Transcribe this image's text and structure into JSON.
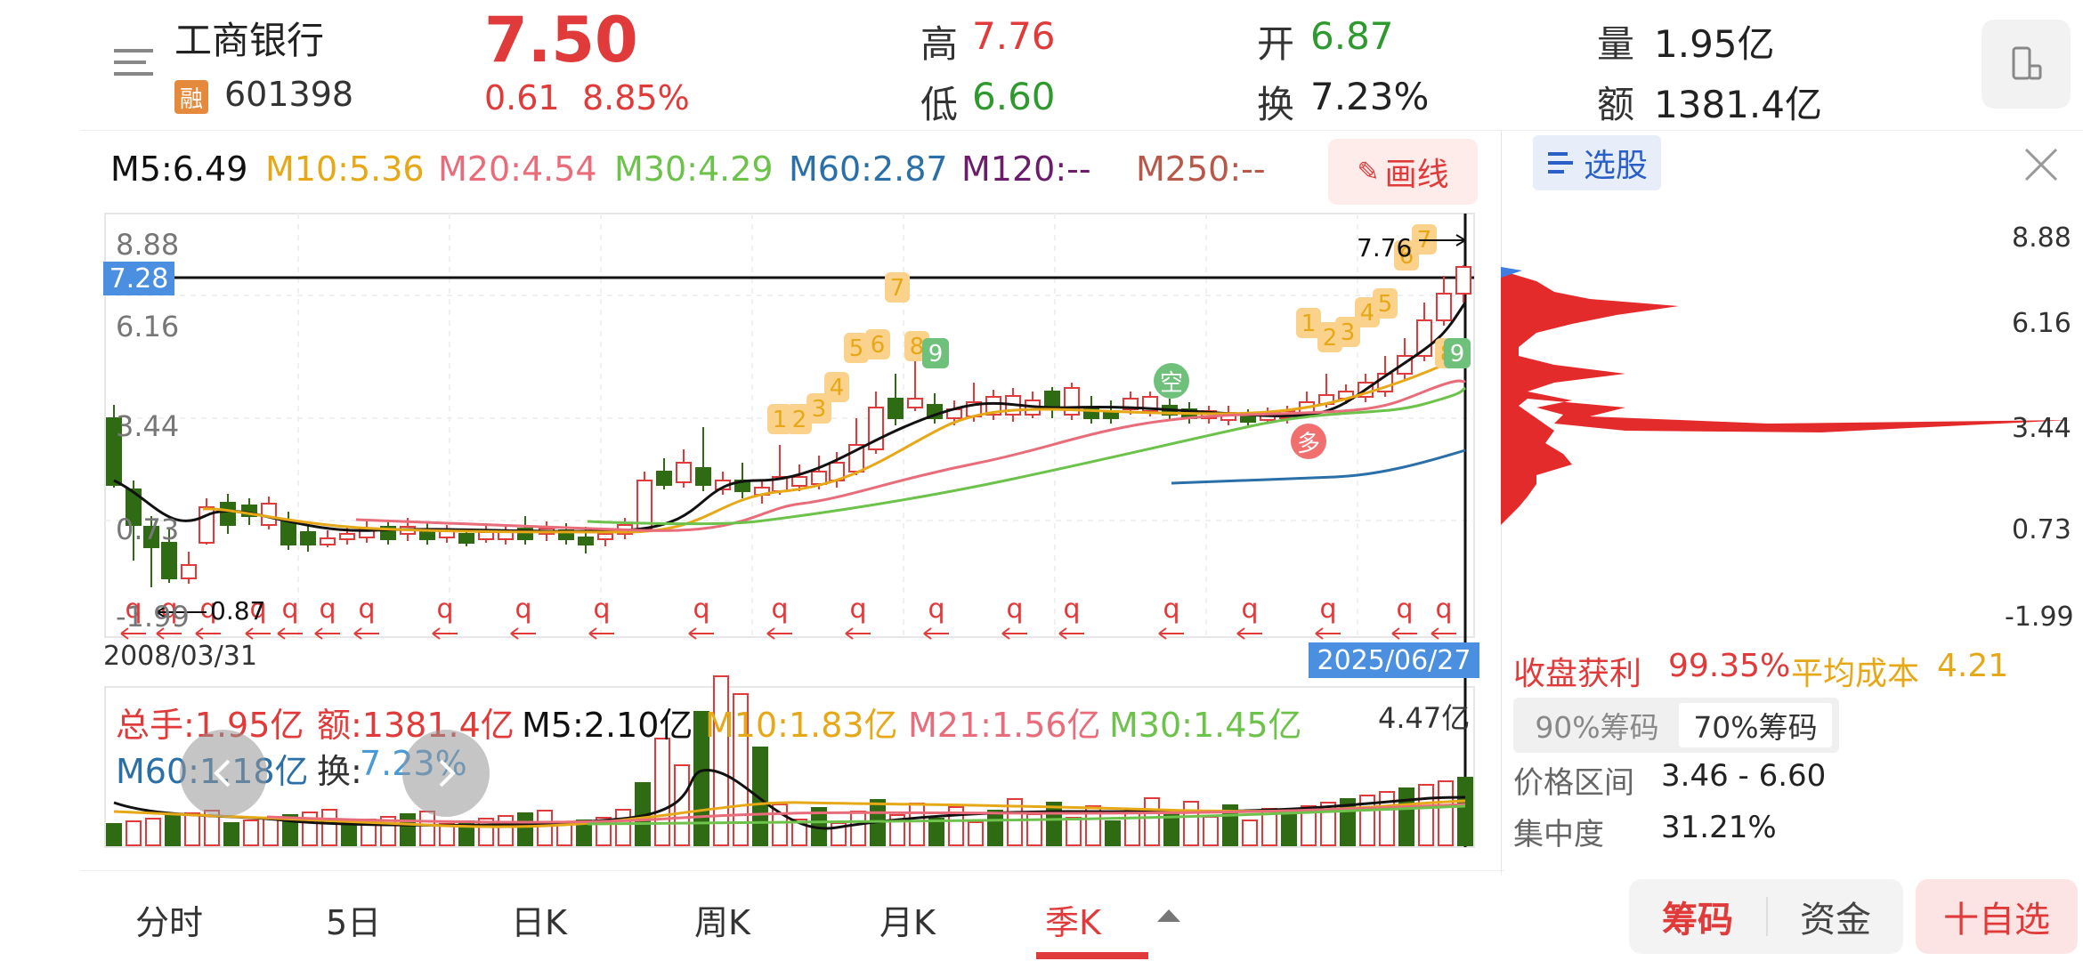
{
  "stock": {
    "name": "工商银行",
    "tag": "融",
    "code": "601398",
    "price": "7.50",
    "change": "0.61",
    "change_pct": "8.85%"
  },
  "quote": {
    "high_label": "高",
    "high": "7.76",
    "low_label": "低",
    "low": "6.60",
    "open_label": "开",
    "open": "6.87",
    "turnover_label": "换",
    "turnover": "7.23%",
    "volume_label": "量",
    "volume": "1.95亿",
    "amount_label": "额",
    "amount": "1381.4亿"
  },
  "ma": {
    "m5": "M5:6.49",
    "m10": "M10:5.36",
    "m20": "M20:4.54",
    "m30": "M30:4.29",
    "m60": "M60:2.87",
    "m120": "M120:--",
    "m250": "M250:--",
    "draw_label": "画线"
  },
  "chart_data": {
    "type": "candlestick",
    "period": "季K",
    "y_ticks": [
      "8.88",
      "6.16",
      "3.44",
      "0.73",
      "-1.99"
    ],
    "crosshair_price": "7.28",
    "high_marker": "7.76",
    "low_marker": "0.87",
    "x_start": "2008/03/31",
    "x_end": "2025/06/27",
    "q_marker": "q",
    "td_labels_1": [
      "1",
      "2",
      "3",
      "4",
      "5",
      "6",
      "7",
      "8",
      "9"
    ],
    "td_labels_2": [
      "1",
      "2",
      "3",
      "4",
      "5",
      "6",
      "7",
      "8",
      "9"
    ],
    "signal_short": "空",
    "signal_long": "多",
    "colors": {
      "up": "#e03a3a",
      "down": "#2f6b12",
      "m5": "#111111",
      "m10": "#e6a817",
      "m20": "#e86c7a",
      "m30": "#6cc24a",
      "m60": "#2a6fa8"
    }
  },
  "volume": {
    "total": "总手:1.95亿",
    "amount": "额:1381.4亿",
    "m5": "M5:2.10亿",
    "m10": "M10:1.83亿",
    "m21": "M21:1.56亿",
    "m30": "M30:1.45亿",
    "m60": "M60:1.18亿",
    "turnover_label": "换:",
    "turnover": "7.23%",
    "max": "4.47亿"
  },
  "chips": {
    "select_label": "选股",
    "y_ticks": [
      "8.88",
      "6.16",
      "3.44",
      "0.73",
      "-1.99"
    ],
    "profit_label": "收盘获利",
    "profit": "99.35%",
    "avg_cost_label": "平均成本",
    "avg_cost": "4.21",
    "seg_90": "90%筹码",
    "seg_70": "70%筹码",
    "range_label": "价格区间",
    "range": "3.46 - 6.60",
    "conc_label": "集中度",
    "conc": "31.21%"
  },
  "bottom_tabs": [
    "分时",
    "5日",
    "日K",
    "周K",
    "月K",
    "季K"
  ],
  "bottom_buttons": {
    "chips": "筹码",
    "funds": "资金",
    "watch": "十自选"
  }
}
